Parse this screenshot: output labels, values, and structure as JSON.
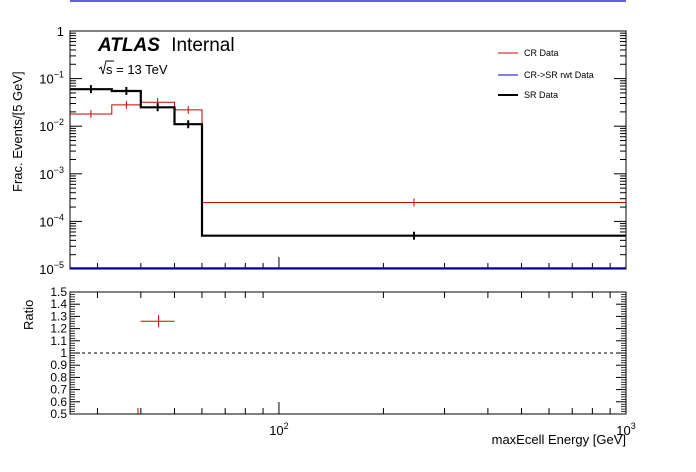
{
  "chart_data": [
    {
      "type": "line",
      "panel": "main",
      "xlabel": "maxEcell Energy [GeV]",
      "ylabel": "Frac. Events/[5 GeV]",
      "x_scale": "log",
      "y_scale": "log",
      "xlim": [
        25,
        1000
      ],
      "ylim": [
        1e-05,
        1
      ],
      "y_ticks": [
        {
          "value": 1,
          "label_base": "1",
          "label_exp": ""
        },
        {
          "value": 0.1,
          "label_base": "10",
          "label_exp": "−1"
        },
        {
          "value": 0.01,
          "label_base": "10",
          "label_exp": "−2"
        },
        {
          "value": 0.001,
          "label_base": "10",
          "label_exp": "−3"
        },
        {
          "value": 0.0001,
          "label_base": "10",
          "label_exp": "−4"
        },
        {
          "value": 1e-05,
          "label_base": "10",
          "label_exp": "−5"
        }
      ],
      "x_ticks": [
        {
          "value": 100,
          "label_base": "10",
          "label_exp": "2"
        },
        {
          "value": 1000,
          "label_base": "10",
          "label_exp": "3"
        }
      ],
      "annotations": {
        "atlas": "ATLAS",
        "atlas_suffix": "Internal",
        "energy": "s = 13 TeV"
      },
      "legend_position": "top-right",
      "series": [
        {
          "name": "CR Data",
          "color": "#cc0000",
          "bins": [
            {
              "x0": 25,
              "x1": 33,
              "y": 0.018
            },
            {
              "x0": 33,
              "x1": 40,
              "y": 0.028
            },
            {
              "x0": 40,
              "x1": 50,
              "y": 0.032
            },
            {
              "x0": 50,
              "x1": 60,
              "y": 0.022
            },
            {
              "x0": 60,
              "x1": 1000,
              "y": 0.00025
            }
          ]
        },
        {
          "name": "CR->SR rwt Data",
          "color": "#0000cc",
          "bins": []
        },
        {
          "name": "SR Data",
          "color": "#000000",
          "bins": [
            {
              "x0": 25,
              "x1": 33,
              "y": 0.06
            },
            {
              "x0": 33,
              "x1": 40,
              "y": 0.055
            },
            {
              "x0": 40,
              "x1": 50,
              "y": 0.025
            },
            {
              "x0": 50,
              "x1": 60,
              "y": 0.011
            },
            {
              "x0": 60,
              "x1": 1000,
              "y": 5e-05
            }
          ]
        }
      ]
    },
    {
      "type": "scatter",
      "panel": "ratio",
      "ylabel": "Ratio",
      "x_scale": "log",
      "xlim": [
        25,
        1000
      ],
      "ylim": [
        0.5,
        1.5
      ],
      "y_tick_labels": [
        "0.5",
        "0.6",
        "0.7",
        "0.8",
        "0.9",
        "1",
        "1.1",
        "1.2",
        "1.3",
        "1.4",
        "1.5"
      ],
      "reference_line": 1,
      "series": [
        {
          "name": "",
          "color": "#cc0000",
          "points": [
            {
              "x": 45,
              "y": 1.26,
              "xlo": 40,
              "xhi": 50,
              "yerr": 0.05
            }
          ]
        }
      ]
    }
  ]
}
